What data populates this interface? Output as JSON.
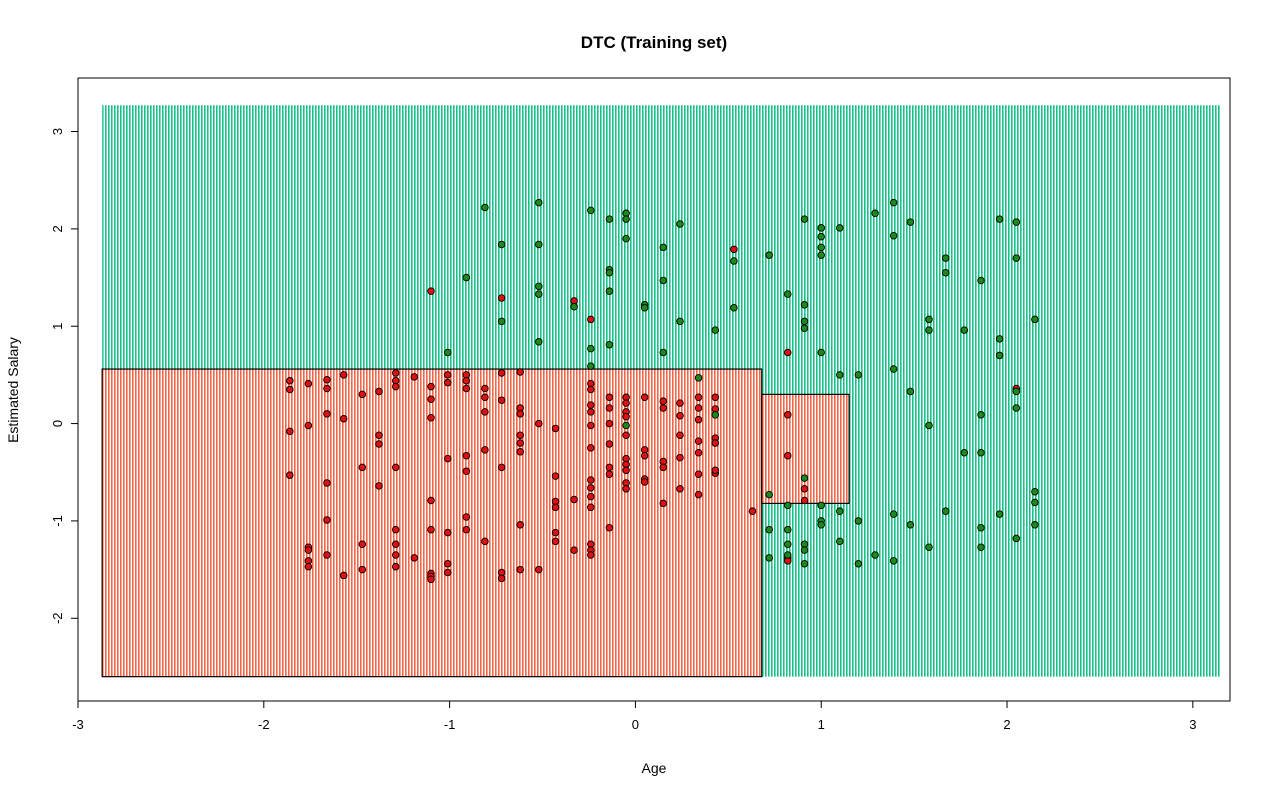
{
  "chart_data": {
    "type": "scatter",
    "title": "DTC (Training set)",
    "xlabel": "Age",
    "ylabel": "Estimated Salary",
    "xlim": [
      -3.0,
      3.2
    ],
    "ylim": [
      -2.85,
      3.55
    ],
    "x_ticks": [
      "-3",
      "-2",
      "-1",
      "0",
      "1",
      "2",
      "3"
    ],
    "y_ticks": [
      "-2",
      "-1",
      "0",
      "1",
      "2",
      "3"
    ],
    "grid": false,
    "legend": "none",
    "colors": {
      "region_class0": "#f2664a",
      "region_class1": "#18c085",
      "point_class0": "#e01010",
      "point_class1": "#1a8a1a",
      "point_stroke": "#000000",
      "boundary": "#000000"
    },
    "background_grid": {
      "x_range": [
        -2.87,
        3.15
      ],
      "y_range": [
        -2.6,
        3.27
      ]
    },
    "decision_regions": [
      {
        "class": 0,
        "x": [
          -2.87,
          0.68
        ],
        "y": [
          -2.6,
          0.56
        ]
      },
      {
        "class": 0,
        "x": [
          0.68,
          1.15
        ],
        "y": [
          -0.82,
          0.3
        ]
      }
    ],
    "series": [
      {
        "class": 0,
        "points": [
          [
            -1.86,
            0.44
          ],
          [
            -1.86,
            0.35
          ],
          [
            -1.76,
            0.41
          ],
          [
            -1.66,
            0.45
          ],
          [
            -1.66,
            0.36
          ],
          [
            -1.57,
            0.5
          ],
          [
            -1.47,
            0.3
          ],
          [
            -1.38,
            0.33
          ],
          [
            -1.29,
            0.52
          ],
          [
            -1.29,
            0.44
          ],
          [
            -1.29,
            0.38
          ],
          [
            -1.19,
            0.48
          ],
          [
            -1.1,
            0.38
          ],
          [
            -1.1,
            0.25
          ],
          [
            -1.01,
            0.5
          ],
          [
            -1.01,
            0.42
          ],
          [
            -0.91,
            0.5
          ],
          [
            -0.91,
            0.44
          ],
          [
            -0.91,
            0.36
          ],
          [
            -0.81,
            0.36
          ],
          [
            -0.81,
            0.27
          ],
          [
            -0.72,
            0.24
          ],
          [
            -0.72,
            0.52
          ],
          [
            -0.62,
            0.53
          ],
          [
            -1.86,
            -0.08
          ],
          [
            -1.86,
            -0.53
          ],
          [
            -1.76,
            -0.02
          ],
          [
            -1.66,
            0.1
          ],
          [
            -1.66,
            -0.61
          ],
          [
            -1.66,
            -0.99
          ],
          [
            -1.57,
            0.05
          ],
          [
            -1.47,
            -0.45
          ],
          [
            -1.38,
            -0.12
          ],
          [
            -1.38,
            -0.21
          ],
          [
            -1.38,
            -0.64
          ],
          [
            -1.29,
            -0.45
          ],
          [
            -1.1,
            0.06
          ],
          [
            -1.1,
            -0.79
          ],
          [
            -1.01,
            -0.36
          ],
          [
            -0.91,
            -0.33
          ],
          [
            -0.91,
            -0.49
          ],
          [
            -0.91,
            -0.96
          ],
          [
            -0.81,
            0.12
          ],
          [
            -0.81,
            -0.27
          ],
          [
            -0.72,
            -0.45
          ],
          [
            -0.62,
            0.16
          ],
          [
            -0.62,
            0.1
          ],
          [
            -0.62,
            -0.12
          ],
          [
            -0.62,
            -0.2
          ],
          [
            -0.62,
            -0.29
          ],
          [
            -0.52,
            0.0
          ],
          [
            -0.43,
            -0.05
          ],
          [
            -0.43,
            -0.54
          ],
          [
            -0.43,
            -0.8
          ],
          [
            -0.43,
            -0.86
          ],
          [
            -0.33,
            -0.78
          ],
          [
            -1.76,
            -1.27
          ],
          [
            -1.76,
            -1.3
          ],
          [
            -1.76,
            -1.41
          ],
          [
            -1.76,
            -1.47
          ],
          [
            -1.66,
            -1.35
          ],
          [
            -1.57,
            -1.56
          ],
          [
            -1.47,
            -1.24
          ],
          [
            -1.47,
            -1.5
          ],
          [
            -1.29,
            -1.09
          ],
          [
            -1.29,
            -1.24
          ],
          [
            -1.29,
            -1.35
          ],
          [
            -1.29,
            -1.47
          ],
          [
            -1.19,
            -1.38
          ],
          [
            -1.1,
            -1.09
          ],
          [
            -1.1,
            -1.54
          ],
          [
            -1.1,
            -1.57
          ],
          [
            -1.1,
            -1.6
          ],
          [
            -1.01,
            -1.12
          ],
          [
            -1.01,
            -1.44
          ],
          [
            -1.01,
            -1.53
          ],
          [
            -0.91,
            -1.09
          ],
          [
            -0.81,
            -1.21
          ],
          [
            -0.72,
            -1.53
          ],
          [
            -0.72,
            -1.59
          ],
          [
            -0.62,
            -1.04
          ],
          [
            -0.62,
            -1.5
          ],
          [
            -0.52,
            -1.5
          ],
          [
            -0.43,
            -1.12
          ],
          [
            -0.43,
            -1.21
          ],
          [
            -0.33,
            -1.3
          ],
          [
            -0.24,
            0.41
          ],
          [
            -0.24,
            0.35
          ],
          [
            -0.24,
            0.19
          ],
          [
            -0.24,
            0.12
          ],
          [
            -0.24,
            -0.02
          ],
          [
            -0.24,
            -0.25
          ],
          [
            -0.24,
            -0.58
          ],
          [
            -0.24,
            -0.66
          ],
          [
            -0.24,
            -0.75
          ],
          [
            -0.24,
            -0.86
          ],
          [
            -0.24,
            -1.24
          ],
          [
            -0.24,
            -1.3
          ],
          [
            -0.24,
            -1.35
          ],
          [
            -0.14,
            0.27
          ],
          [
            -0.14,
            0.16
          ],
          [
            -0.14,
            0.0
          ],
          [
            -0.14,
            -0.21
          ],
          [
            -0.14,
            -0.45
          ],
          [
            -0.14,
            -0.52
          ],
          [
            -0.14,
            -1.07
          ],
          [
            -0.05,
            0.27
          ],
          [
            -0.05,
            0.21
          ],
          [
            -0.05,
            0.12
          ],
          [
            -0.05,
            0.07
          ],
          [
            -0.05,
            -0.12
          ],
          [
            -0.05,
            -0.36
          ],
          [
            -0.05,
            -0.42
          ],
          [
            -0.05,
            -0.48
          ],
          [
            -0.05,
            -0.61
          ],
          [
            -0.05,
            -0.67
          ],
          [
            0.05,
            0.27
          ],
          [
            0.05,
            -0.27
          ],
          [
            0.05,
            -0.33
          ],
          [
            0.05,
            -0.57
          ],
          [
            0.05,
            -0.6
          ],
          [
            0.15,
            0.23
          ],
          [
            0.15,
            0.16
          ],
          [
            0.15,
            -0.39
          ],
          [
            0.15,
            -0.45
          ],
          [
            0.15,
            -0.82
          ],
          [
            0.24,
            0.21
          ],
          [
            0.24,
            0.08
          ],
          [
            0.24,
            -0.12
          ],
          [
            0.24,
            -0.35
          ],
          [
            0.24,
            -0.67
          ],
          [
            0.34,
            0.27
          ],
          [
            0.34,
            0.16
          ],
          [
            0.34,
            0.04
          ],
          [
            0.34,
            -0.18
          ],
          [
            0.34,
            -0.3
          ],
          [
            0.34,
            -0.52
          ],
          [
            0.34,
            -0.73
          ],
          [
            0.43,
            0.27
          ],
          [
            0.43,
            0.15
          ],
          [
            0.43,
            -0.15
          ],
          [
            0.43,
            -0.51
          ],
          [
            0.43,
            -0.48
          ],
          [
            0.43,
            -0.2
          ],
          [
            0.63,
            -0.9
          ],
          [
            0.82,
            0.73
          ],
          [
            0.82,
            0.09
          ],
          [
            0.82,
            -0.33
          ],
          [
            0.82,
            -1.38
          ],
          [
            0.82,
            -1.41
          ],
          [
            0.91,
            -0.67
          ],
          [
            0.91,
            -0.79
          ],
          [
            1.0,
            2.01
          ],
          [
            2.05,
            0.36
          ],
          [
            -1.1,
            1.36
          ],
          [
            -0.72,
            1.29
          ],
          [
            -0.33,
            1.26
          ],
          [
            -0.24,
            1.07
          ],
          [
            0.53,
            1.79
          ]
        ]
      },
      {
        "class": 1,
        "points": [
          [
            -0.81,
            2.22
          ],
          [
            -0.52,
            2.27
          ],
          [
            -0.24,
            2.19
          ],
          [
            -0.05,
            2.16
          ],
          [
            -0.05,
            2.1
          ],
          [
            -0.14,
            2.1
          ],
          [
            0.24,
            2.05
          ],
          [
            -0.05,
            1.9
          ],
          [
            -0.72,
            1.84
          ],
          [
            -0.52,
            1.84
          ],
          [
            0.15,
            1.81
          ],
          [
            -0.14,
            1.58
          ],
          [
            -0.14,
            1.55
          ],
          [
            -0.91,
            1.5
          ],
          [
            0.15,
            1.47
          ],
          [
            -0.52,
            1.41
          ],
          [
            -0.14,
            1.36
          ],
          [
            -0.52,
            1.33
          ],
          [
            -0.33,
            1.2
          ],
          [
            0.05,
            1.22
          ],
          [
            0.05,
            1.19
          ],
          [
            0.53,
            1.19
          ],
          [
            -0.72,
            1.05
          ],
          [
            0.24,
            1.05
          ],
          [
            0.43,
            0.96
          ],
          [
            -0.52,
            0.84
          ],
          [
            -0.14,
            0.81
          ],
          [
            -0.24,
            0.77
          ],
          [
            0.15,
            0.73
          ],
          [
            -1.01,
            0.73
          ],
          [
            -0.24,
            0.59
          ],
          [
            0.34,
            0.47
          ],
          [
            0.43,
            0.09
          ],
          [
            -0.05,
            -0.02
          ],
          [
            0.53,
            1.67
          ],
          [
            0.72,
            1.73
          ],
          [
            0.82,
            1.33
          ],
          [
            0.91,
            2.1
          ],
          [
            0.91,
            1.22
          ],
          [
            0.91,
            1.05
          ],
          [
            0.91,
            0.98
          ],
          [
            1.0,
            2.01
          ],
          [
            1.0,
            1.92
          ],
          [
            1.0,
            1.81
          ],
          [
            1.0,
            1.73
          ],
          [
            1.0,
            0.73
          ],
          [
            1.1,
            2.01
          ],
          [
            1.1,
            0.5
          ],
          [
            1.2,
            0.5
          ],
          [
            1.29,
            2.16
          ],
          [
            1.39,
            2.27
          ],
          [
            1.39,
            1.93
          ],
          [
            1.39,
            0.56
          ],
          [
            1.48,
            2.07
          ],
          [
            1.48,
            0.33
          ],
          [
            1.58,
            1.07
          ],
          [
            1.58,
            0.96
          ],
          [
            1.58,
            -0.02
          ],
          [
            1.67,
            1.7
          ],
          [
            1.67,
            1.55
          ],
          [
            1.77,
            0.96
          ],
          [
            1.77,
            -0.3
          ],
          [
            1.86,
            1.47
          ],
          [
            1.86,
            0.09
          ],
          [
            1.86,
            -0.3
          ],
          [
            1.96,
            2.1
          ],
          [
            1.96,
            0.87
          ],
          [
            1.96,
            0.7
          ],
          [
            2.05,
            2.07
          ],
          [
            2.05,
            1.7
          ],
          [
            2.05,
            0.33
          ],
          [
            2.05,
            0.16
          ],
          [
            2.15,
            1.07
          ],
          [
            0.72,
            -0.73
          ],
          [
            0.72,
            -1.09
          ],
          [
            0.72,
            -1.38
          ],
          [
            0.82,
            -0.84
          ],
          [
            0.82,
            -1.09
          ],
          [
            0.82,
            -1.24
          ],
          [
            0.82,
            -1.35
          ],
          [
            0.91,
            -0.56
          ],
          [
            0.91,
            -1.24
          ],
          [
            0.91,
            -1.3
          ],
          [
            0.91,
            -1.44
          ],
          [
            1.0,
            -0.84
          ],
          [
            1.0,
            -1.0
          ],
          [
            1.0,
            -1.04
          ],
          [
            1.1,
            -0.9
          ],
          [
            1.1,
            -1.21
          ],
          [
            1.2,
            -1.0
          ],
          [
            1.2,
            -1.44
          ],
          [
            1.29,
            -1.35
          ],
          [
            1.39,
            -0.93
          ],
          [
            1.39,
            -1.41
          ],
          [
            1.48,
            -1.04
          ],
          [
            1.58,
            -1.27
          ],
          [
            1.67,
            -0.9
          ],
          [
            1.86,
            -1.07
          ],
          [
            1.86,
            -1.27
          ],
          [
            1.96,
            -0.93
          ],
          [
            2.05,
            -1.18
          ],
          [
            2.15,
            -0.7
          ],
          [
            2.15,
            -0.81
          ],
          [
            2.15,
            -1.04
          ]
        ]
      }
    ]
  }
}
